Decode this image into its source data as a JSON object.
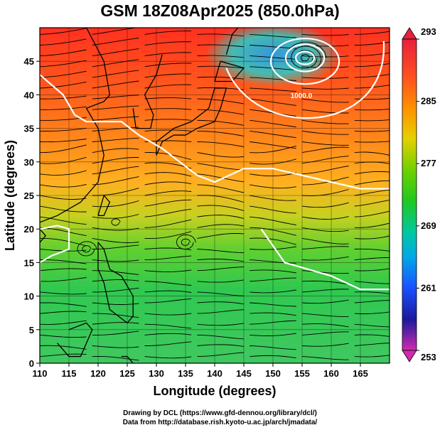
{
  "title": "GSM 18Z08Apr2025 (850.0hPa)",
  "x_axis": {
    "label": "Longitude (degrees)",
    "ticks": [
      110,
      115,
      120,
      125,
      130,
      135,
      140,
      145,
      150,
      155,
      160,
      165
    ],
    "range": [
      110,
      170
    ]
  },
  "y_axis": {
    "label": "Latitude  (degrees)",
    "ticks": [
      0,
      5,
      10,
      15,
      20,
      25,
      30,
      35,
      40,
      45
    ],
    "range": [
      0,
      50
    ]
  },
  "colorbar": {
    "labels": [
      "293",
      "285",
      "277",
      "269",
      "261",
      "253"
    ],
    "values": [
      293,
      285,
      277,
      269,
      261,
      253
    ],
    "range": [
      253,
      293
    ],
    "colors": [
      "#e8203a",
      "#ff8a00",
      "#e6c800",
      "#22c800",
      "#00c8c0",
      "#1a6cff",
      "#1a1aa0",
      "#c01aa8"
    ]
  },
  "contour_label": "1000.0",
  "credits": {
    "line1": "Drawing by DCL (https://www.gfd-dennou.org/library/dcl/)",
    "line2": "Data from http://database.rish.kyoto-u.ac.jp/arch/jmadata/"
  }
}
